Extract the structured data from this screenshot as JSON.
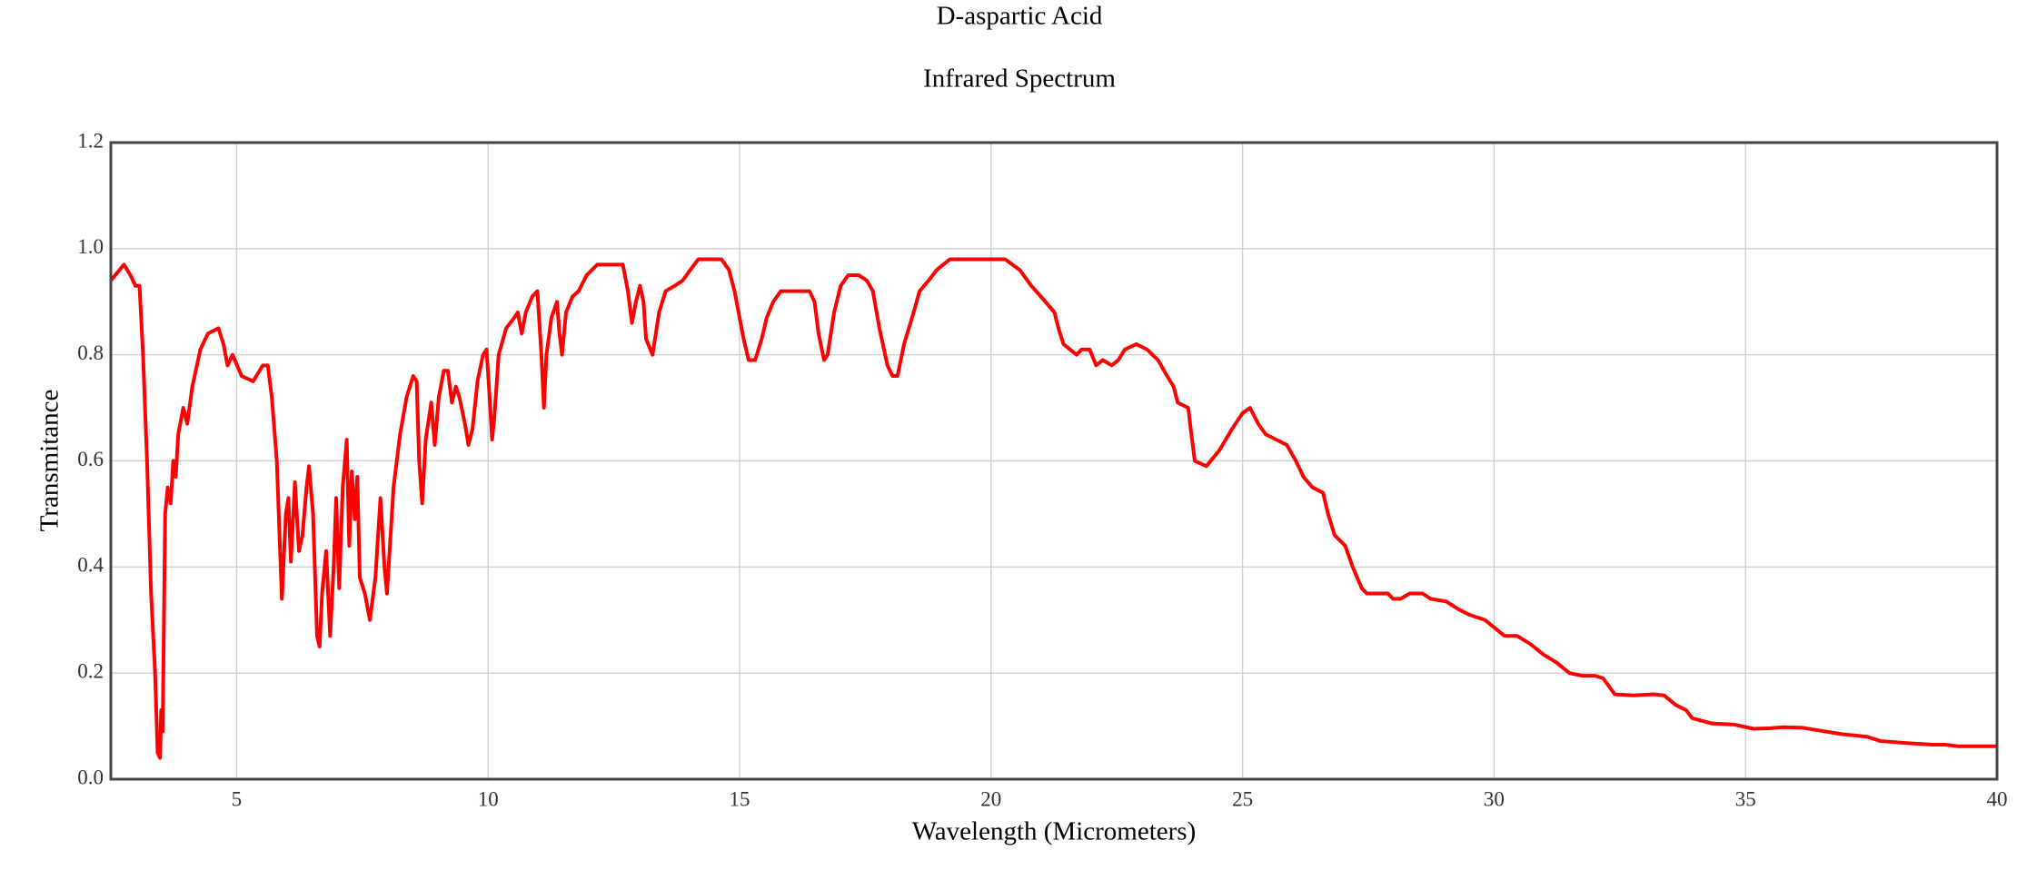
{
  "chart_data": {
    "type": "line",
    "title": "D-aspartic Acid",
    "subtitle": "Infrared Spectrum",
    "x_label": "Wavelength (Micrometers)",
    "y_label": "Transmitance",
    "xlim": [
      2.5,
      40
    ],
    "xticks": [
      5,
      10,
      15,
      20,
      25,
      30,
      35,
      40
    ],
    "ylim": [
      0,
      1.2
    ],
    "yticks": [
      {
        "value": 0,
        "label": "0.0"
      },
      0.2,
      0.4,
      0.6,
      0.8,
      {
        "value": 1,
        "label": "1.0"
      },
      1.2
    ],
    "grid": true,
    "x": [
      2.5,
      2.76,
      2.89,
      2.99,
      3.07,
      3.14,
      3.22,
      3.3,
      3.38,
      3.43,
      3.48,
      3.5,
      3.53,
      3.58,
      3.63,
      3.69,
      3.74,
      3.79,
      3.84,
      3.94,
      4.02,
      4.12,
      4.28,
      4.43,
      4.64,
      4.74,
      4.82,
      4.92,
      5.1,
      5.33,
      5.52,
      5.62,
      5.7,
      5.8,
      5.9,
      5.98,
      6.03,
      6.08,
      6.16,
      6.24,
      6.31,
      6.39,
      6.44,
      6.52,
      6.6,
      6.65,
      6.7,
      6.78,
      6.86,
      6.93,
      6.98,
      7.04,
      7.11,
      7.19,
      7.24,
      7.29,
      7.35,
      7.4,
      7.45,
      7.55,
      7.65,
      7.76,
      7.86,
      7.94,
      7.99,
      8.12,
      8.25,
      8.38,
      8.51,
      8.58,
      8.63,
      8.69,
      8.76,
      8.87,
      8.94,
      9.02,
      9.12,
      9.2,
      9.28,
      9.36,
      9.43,
      9.54,
      9.61,
      9.69,
      9.79,
      9.9,
      9.97,
      10.03,
      10.08,
      10.13,
      10.21,
      10.36,
      10.52,
      10.59,
      10.67,
      10.75,
      10.88,
      10.98,
      11.06,
      11.11,
      11.16,
      11.26,
      11.37,
      11.42,
      11.47,
      11.55,
      11.68,
      11.8,
      11.96,
      12.17,
      12.42,
      12.68,
      12.78,
      12.86,
      12.94,
      13.02,
      13.09,
      13.14,
      13.27,
      13.4,
      13.53,
      13.71,
      13.87,
      14.02,
      14.18,
      14.36,
      14.64,
      14.79,
      14.9,
      15.0,
      15.08,
      15.18,
      15.31,
      15.44,
      15.54,
      15.67,
      15.82,
      16.03,
      16.39,
      16.49,
      16.57,
      16.68,
      16.75,
      16.88,
      17.01,
      17.16,
      17.37,
      17.53,
      17.65,
      17.78,
      17.94,
      18.04,
      18.14,
      18.27,
      18.43,
      18.58,
      18.76,
      18.92,
      19.18,
      19.43,
      19.77,
      20.0,
      20.28,
      20.57,
      20.8,
      21.08,
      21.26,
      21.34,
      21.44,
      21.57,
      21.7,
      21.8,
      21.96,
      22.09,
      22.22,
      22.4,
      22.53,
      22.66,
      22.89,
      23.1,
      23.32,
      23.5,
      23.63,
      23.71,
      23.92,
      23.97,
      24.05,
      24.28,
      24.54,
      24.79,
      25.0,
      25.15,
      25.31,
      25.46,
      25.67,
      25.88,
      26.06,
      26.21,
      26.39,
      26.6,
      26.7,
      26.83,
      27.04,
      27.19,
      27.37,
      27.47,
      27.89,
      27.99,
      28.14,
      28.32,
      28.58,
      28.74,
      29.05,
      29.3,
      29.51,
      29.82,
      30.21,
      30.46,
      30.72,
      30.98,
      31.24,
      31.5,
      31.75,
      32.01,
      32.17,
      32.4,
      32.78,
      33.17,
      33.38,
      33.61,
      33.82,
      33.94,
      34.33,
      34.77,
      35.16,
      35.49,
      35.75,
      36.13,
      36.39,
      36.91,
      37.42,
      37.68,
      38.2,
      38.71,
      38.97,
      39.23,
      40.0
    ],
    "series": [
      {
        "name": "Transmitance",
        "color": "#ff0000",
        "values": [
          0.94,
          0.97,
          0.95,
          0.93,
          0.93,
          0.8,
          0.6,
          0.35,
          0.2,
          0.05,
          0.04,
          0.13,
          0.09,
          0.5,
          0.55,
          0.52,
          0.6,
          0.57,
          0.65,
          0.7,
          0.67,
          0.74,
          0.81,
          0.84,
          0.85,
          0.82,
          0.78,
          0.8,
          0.76,
          0.75,
          0.78,
          0.78,
          0.72,
          0.6,
          0.34,
          0.5,
          0.53,
          0.41,
          0.56,
          0.43,
          0.46,
          0.55,
          0.59,
          0.5,
          0.27,
          0.25,
          0.35,
          0.43,
          0.27,
          0.4,
          0.53,
          0.36,
          0.55,
          0.64,
          0.44,
          0.58,
          0.49,
          0.57,
          0.38,
          0.35,
          0.3,
          0.38,
          0.53,
          0.4,
          0.35,
          0.55,
          0.65,
          0.72,
          0.76,
          0.75,
          0.6,
          0.52,
          0.64,
          0.71,
          0.63,
          0.72,
          0.77,
          0.77,
          0.71,
          0.74,
          0.72,
          0.67,
          0.63,
          0.66,
          0.75,
          0.8,
          0.81,
          0.72,
          0.64,
          0.69,
          0.8,
          0.85,
          0.87,
          0.88,
          0.84,
          0.88,
          0.91,
          0.92,
          0.8,
          0.7,
          0.8,
          0.87,
          0.9,
          0.84,
          0.8,
          0.88,
          0.91,
          0.92,
          0.95,
          0.97,
          0.97,
          0.97,
          0.92,
          0.86,
          0.9,
          0.93,
          0.9,
          0.83,
          0.8,
          0.88,
          0.92,
          0.93,
          0.94,
          0.96,
          0.98,
          0.98,
          0.98,
          0.96,
          0.92,
          0.87,
          0.83,
          0.79,
          0.79,
          0.83,
          0.87,
          0.9,
          0.92,
          0.92,
          0.92,
          0.9,
          0.84,
          0.79,
          0.8,
          0.88,
          0.93,
          0.95,
          0.95,
          0.94,
          0.92,
          0.85,
          0.78,
          0.76,
          0.76,
          0.82,
          0.87,
          0.92,
          0.94,
          0.96,
          0.98,
          0.98,
          0.98,
          0.98,
          0.98,
          0.96,
          0.93,
          0.9,
          0.88,
          0.85,
          0.82,
          0.81,
          0.8,
          0.81,
          0.81,
          0.78,
          0.79,
          0.78,
          0.79,
          0.81,
          0.82,
          0.81,
          0.79,
          0.76,
          0.74,
          0.71,
          0.7,
          0.66,
          0.6,
          0.59,
          0.62,
          0.66,
          0.69,
          0.7,
          0.67,
          0.65,
          0.64,
          0.63,
          0.6,
          0.57,
          0.55,
          0.54,
          0.5,
          0.46,
          0.44,
          0.4,
          0.36,
          0.35,
          0.35,
          0.34,
          0.34,
          0.35,
          0.35,
          0.34,
          0.335,
          0.32,
          0.31,
          0.3,
          0.27,
          0.27,
          0.255,
          0.235,
          0.22,
          0.2,
          0.195,
          0.195,
          0.19,
          0.16,
          0.158,
          0.16,
          0.158,
          0.14,
          0.13,
          0.115,
          0.105,
          0.103,
          0.095,
          0.096,
          0.098,
          0.097,
          0.093,
          0.085,
          0.08,
          0.072,
          0.068,
          0.065,
          0.065,
          0.062,
          0.062
        ]
      }
    ]
  }
}
